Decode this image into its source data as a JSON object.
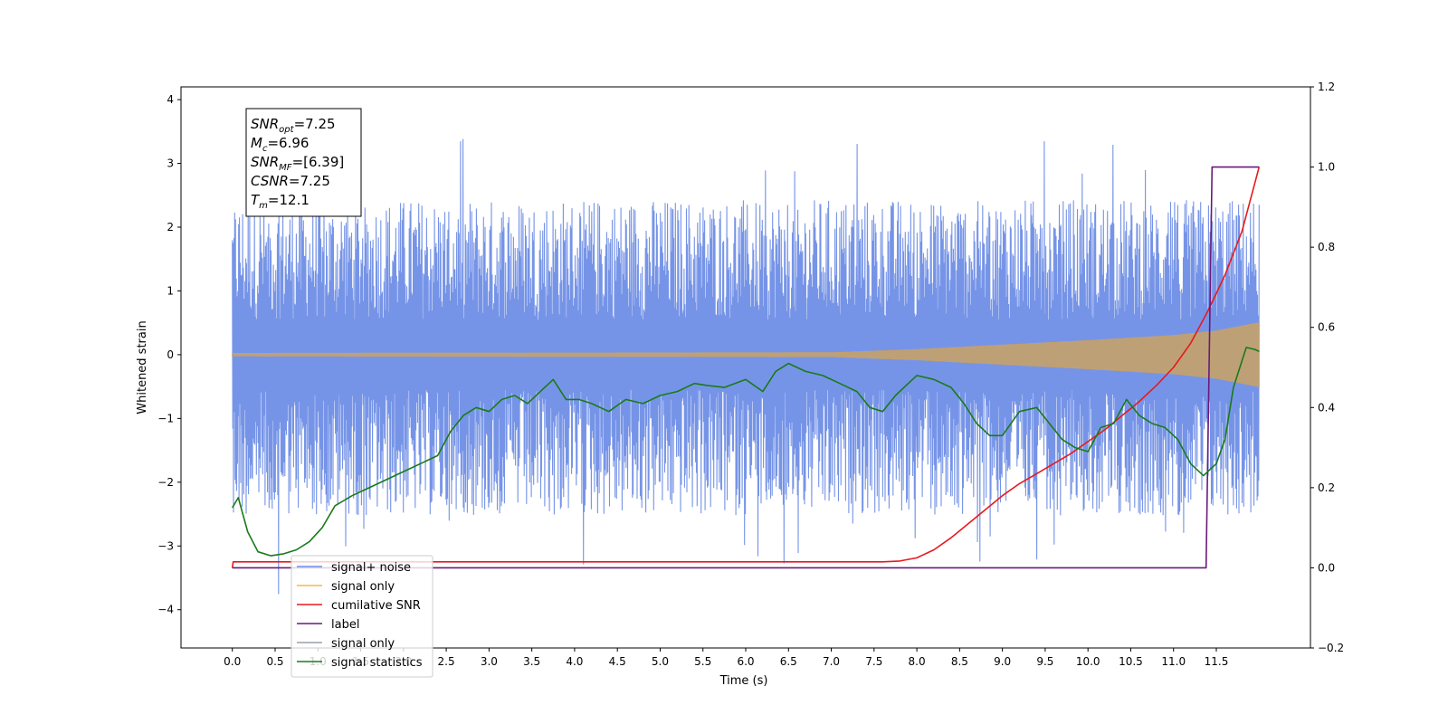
{
  "chart_data": {
    "type": "line",
    "title": "",
    "xlabel": "Time (s)",
    "ylabel_left": "Whitened strain",
    "ylabel_right": "",
    "xlim": [
      -0.6,
      12.6
    ],
    "ylim_left": [
      -4.6,
      4.2
    ],
    "ylim_right": [
      -0.2,
      1.2
    ],
    "x_ticks": [
      "0.0",
      "0.5",
      "1.0",
      "1.5",
      "2.0",
      "2.5",
      "3.0",
      "3.5",
      "4.0",
      "4.5",
      "5.0",
      "5.5",
      "6.0",
      "6.5",
      "7.0",
      "7.5",
      "8.0",
      "8.5",
      "9.0",
      "9.5",
      "10.0",
      "10.5",
      "11.0",
      "11.5"
    ],
    "y_ticks_left": [
      "4",
      "3",
      "2",
      "1",
      "0",
      "−1",
      "−2",
      "−3",
      "−4"
    ],
    "y_ticks_right": [
      "1.2",
      "1.0",
      "0.8",
      "0.6",
      "0.4",
      "0.2",
      "0.0",
      "−0.2"
    ],
    "grid": false,
    "legend_placement": "lower-left",
    "annotation": {
      "lines": [
        {
          "sym": "SNR",
          "sub": "opt",
          "val": "=7.25"
        },
        {
          "sym": "M",
          "sub": "c",
          "val": "=6.96"
        },
        {
          "sym": "SNR",
          "sub": "MF",
          "val": "=[6.39]"
        },
        {
          "sym": "CSNR",
          "sub": "",
          "val": "=7.25"
        },
        {
          "sym": "T",
          "sub": "m",
          "val": "=12.1"
        }
      ]
    },
    "series": [
      {
        "name": "signal+ noise",
        "axis": "left",
        "color": "#6f8ee6",
        "kind": "noise-envelope",
        "x_range": [
          0.0,
          12.0
        ],
        "peak_values": [
          2.3,
          2.6,
          2.4,
          3.2,
          2.7,
          3.4,
          3.0,
          3.3,
          3.2,
          2.9,
          3.1,
          3.0,
          3.3,
          3.2,
          3.5,
          3.1,
          3.4,
          3.2,
          3.6,
          3.3,
          3.8,
          3.4,
          3.5,
          3.8
        ],
        "trough_values": [
          -2.6,
          -4.0,
          -3.1,
          -3.0,
          -2.9,
          -2.7,
          -2.8,
          -3.0,
          -3.4,
          -3.2,
          -4.1,
          -3.0,
          -3.5,
          -3.2,
          -2.9,
          -3.0,
          -3.1,
          -3.3,
          -3.4,
          -3.1,
          -3.0,
          -3.2,
          -3.1,
          -3.7
        ]
      },
      {
        "name": "signal only",
        "axis": "left",
        "color": "#c2a070",
        "kind": "chirp-envelope",
        "x": [
          0.0,
          7.0,
          8.0,
          9.0,
          10.0,
          11.0,
          11.5,
          12.0
        ],
        "amplitude": [
          0.02,
          0.03,
          0.08,
          0.15,
          0.22,
          0.3,
          0.37,
          0.5
        ]
      },
      {
        "name": "cumilative SNR",
        "axis": "right",
        "color": "#e8191e",
        "x": [
          0.0,
          0.01,
          7.6,
          7.8,
          8.0,
          8.2,
          8.4,
          8.6,
          8.8,
          9.0,
          9.2,
          9.4,
          9.6,
          9.8,
          10.0,
          10.2,
          10.4,
          10.6,
          10.8,
          11.0,
          11.2,
          11.4,
          11.6,
          11.8,
          12.0
        ],
        "values": [
          0.0,
          0.015,
          0.015,
          0.017,
          0.025,
          0.045,
          0.075,
          0.11,
          0.145,
          0.18,
          0.21,
          0.235,
          0.26,
          0.285,
          0.315,
          0.345,
          0.38,
          0.415,
          0.455,
          0.5,
          0.56,
          0.64,
          0.73,
          0.84,
          1.0
        ]
      },
      {
        "name": "label",
        "axis": "right",
        "color": "#6a1a7a",
        "x": [
          0.0,
          11.38,
          11.45,
          12.0
        ],
        "values": [
          0.0,
          0.0,
          1.0,
          1.0
        ]
      },
      {
        "name": "signal statistics",
        "axis": "right",
        "color": "#1a7a1a",
        "x": [
          0.0,
          0.07,
          0.18,
          0.3,
          0.45,
          0.6,
          0.75,
          0.9,
          1.05,
          1.2,
          1.4,
          1.6,
          1.8,
          2.0,
          2.2,
          2.4,
          2.55,
          2.7,
          2.85,
          3.0,
          3.15,
          3.3,
          3.45,
          3.6,
          3.75,
          3.9,
          4.05,
          4.2,
          4.4,
          4.6,
          4.8,
          5.0,
          5.2,
          5.4,
          5.55,
          5.75,
          6.0,
          6.2,
          6.35,
          6.5,
          6.7,
          6.9,
          7.1,
          7.3,
          7.45,
          7.6,
          7.75,
          7.9,
          8.0,
          8.2,
          8.4,
          8.55,
          8.7,
          8.85,
          9.0,
          9.2,
          9.4,
          9.55,
          9.7,
          9.85,
          10.0,
          10.15,
          10.3,
          10.45,
          10.6,
          10.75,
          10.9,
          11.05,
          11.2,
          11.35,
          11.5,
          11.6,
          11.7,
          11.85,
          11.95,
          12.0
        ],
        "values": [
          0.15,
          0.175,
          0.09,
          0.04,
          0.03,
          0.035,
          0.045,
          0.065,
          0.1,
          0.155,
          0.18,
          0.2,
          0.22,
          0.24,
          0.26,
          0.28,
          0.34,
          0.38,
          0.4,
          0.39,
          0.42,
          0.43,
          0.41,
          0.44,
          0.47,
          0.42,
          0.42,
          0.41,
          0.39,
          0.42,
          0.41,
          0.43,
          0.44,
          0.46,
          0.455,
          0.45,
          0.47,
          0.44,
          0.49,
          0.51,
          0.49,
          0.48,
          0.46,
          0.44,
          0.4,
          0.39,
          0.43,
          0.46,
          0.48,
          0.47,
          0.45,
          0.41,
          0.36,
          0.33,
          0.33,
          0.39,
          0.4,
          0.36,
          0.32,
          0.3,
          0.29,
          0.35,
          0.36,
          0.42,
          0.38,
          0.36,
          0.35,
          0.32,
          0.26,
          0.23,
          0.26,
          0.32,
          0.45,
          0.55,
          0.545,
          0.54
        ]
      },
      {
        "name": "signal only",
        "axis": "right",
        "color": "#9aa0a6",
        "kind": "legend-only"
      }
    ],
    "legend_entries": [
      {
        "label": "signal+ noise",
        "color": "#6f8ee6"
      },
      {
        "label": "signal only",
        "color": "#f5b94a"
      },
      {
        "label": "cumilative SNR",
        "color": "#e8191e"
      },
      {
        "label": "label",
        "color": "#6a1a7a"
      },
      {
        "label": "signal only",
        "color": "#9aa0a6"
      },
      {
        "label": "signal statistics",
        "color": "#1a7a1a"
      }
    ]
  }
}
